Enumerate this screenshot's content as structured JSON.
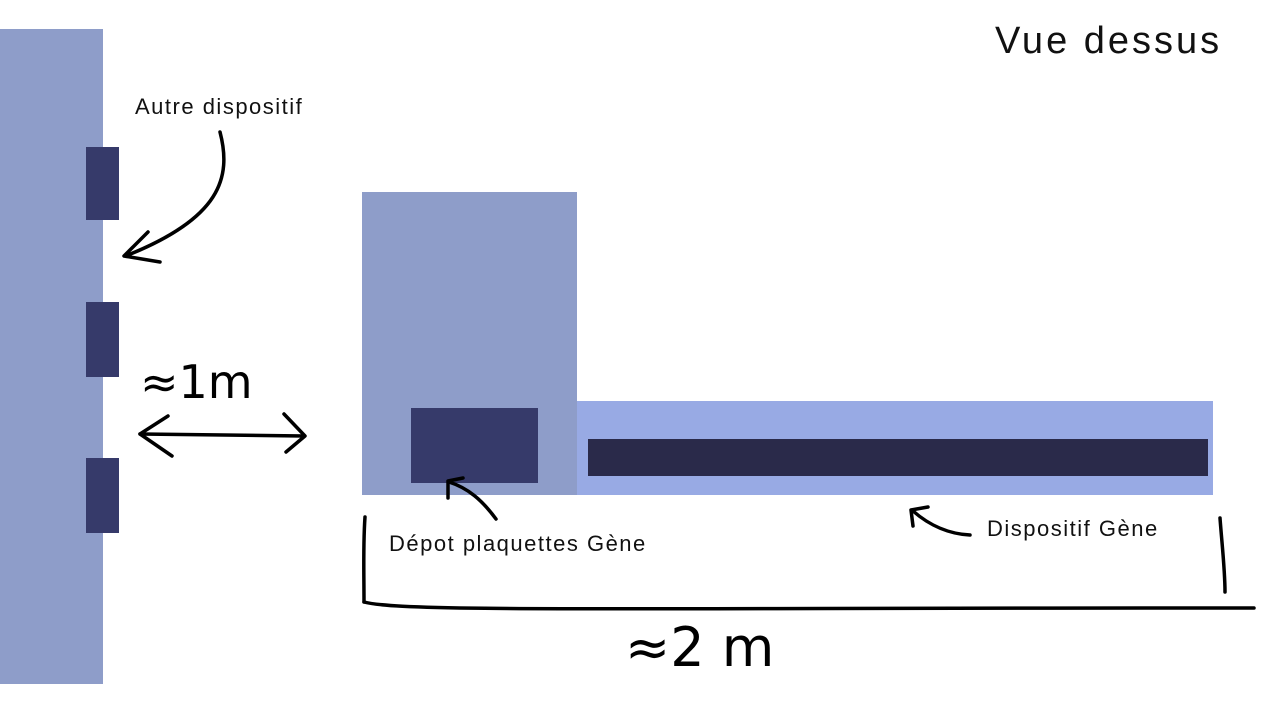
{
  "title": "Vue dessus",
  "labels": {
    "other_device": "Autre dispositif",
    "pad_deposit": "Dépot plaquettes Gène",
    "gene_device": "Dispositif Gène"
  },
  "measures": {
    "distance_between": "≈1m",
    "total_length": "≈2 m"
  },
  "colors": {
    "wall": "#8e9dc9",
    "wall_block": "#363a6a",
    "deposit_area": "#8e9dc9",
    "deposit_block": "#363a6a",
    "device_body": "#98aae4",
    "device_bar": "#2a2a4a"
  }
}
